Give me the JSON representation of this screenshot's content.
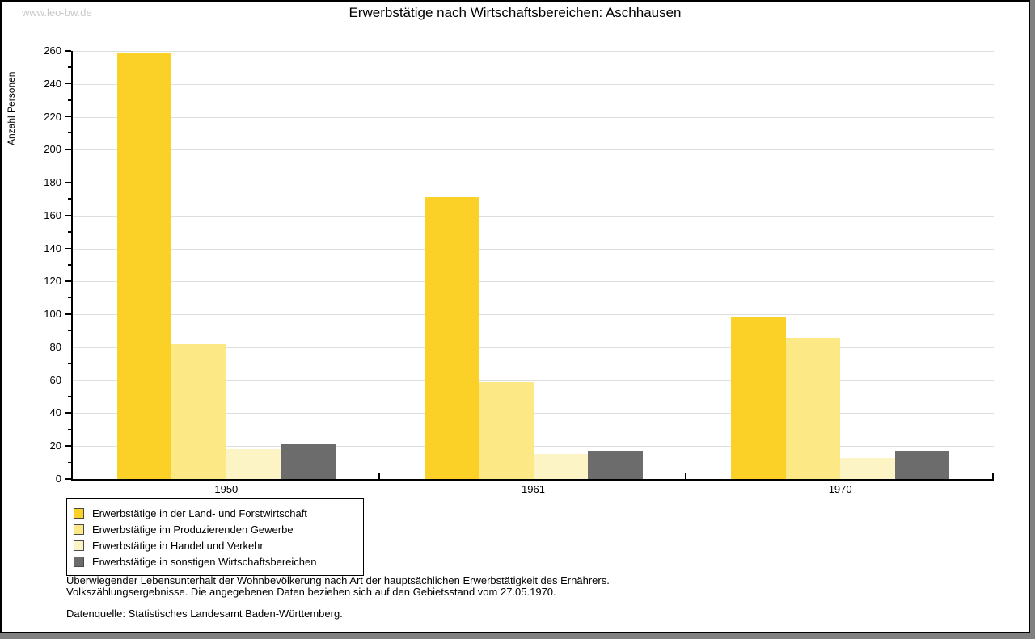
{
  "watermark": "www.leo-bw.de",
  "title": "Erwerbstätige nach Wirtschaftsbereichen: Aschhausen",
  "footnotes": {
    "line1": "Überwiegender Lebensunterhalt der Wohnbevölkerung nach Art der hauptsächlichen Erwerbstätigkeit des Ernährers.",
    "line2": "Volkszählungsergebnisse. Die angegebenen Daten beziehen sich auf den Gebietsstand vom 27.05.1970.",
    "source": "Datenquelle: Statistisches Landesamt Baden-Württemberg."
  },
  "colors": {
    "grid": "#dedede",
    "axis": "#000000",
    "watermark": "#c9c9c9",
    "frame_shadow": "#808080",
    "swatch_border": "#4a4a4a"
  },
  "chart_data": {
    "type": "bar",
    "title": "Erwerbstätige nach Wirtschaftsbereichen: Aschhausen",
    "xlabel": "",
    "ylabel": "Anzahl Personen",
    "categories": [
      "1950",
      "1961",
      "1970"
    ],
    "series": [
      {
        "name": "Erwerbstätige in der Land- und Forstwirtschaft",
        "color": "#fbd128",
        "values": [
          259,
          171,
          98
        ]
      },
      {
        "name": "Erwerbstätige im Produzierenden Gewerbe",
        "color": "#fce884",
        "values": [
          82,
          59,
          86
        ]
      },
      {
        "name": "Erwerbstätige in Handel und Verkehr",
        "color": "#fcf4c4",
        "values": [
          18,
          15,
          13
        ]
      },
      {
        "name": "Erwerbstätige in sonstigen Wirtschaftsbereichen",
        "color": "#6c6c6c",
        "values": [
          21,
          17,
          17
        ]
      }
    ],
    "ylim": [
      0,
      260
    ],
    "ytick_step": 20,
    "minor_tick_step": 10,
    "grid": "horizontal-major-only",
    "legend_position": "bottom-left-boxed"
  }
}
